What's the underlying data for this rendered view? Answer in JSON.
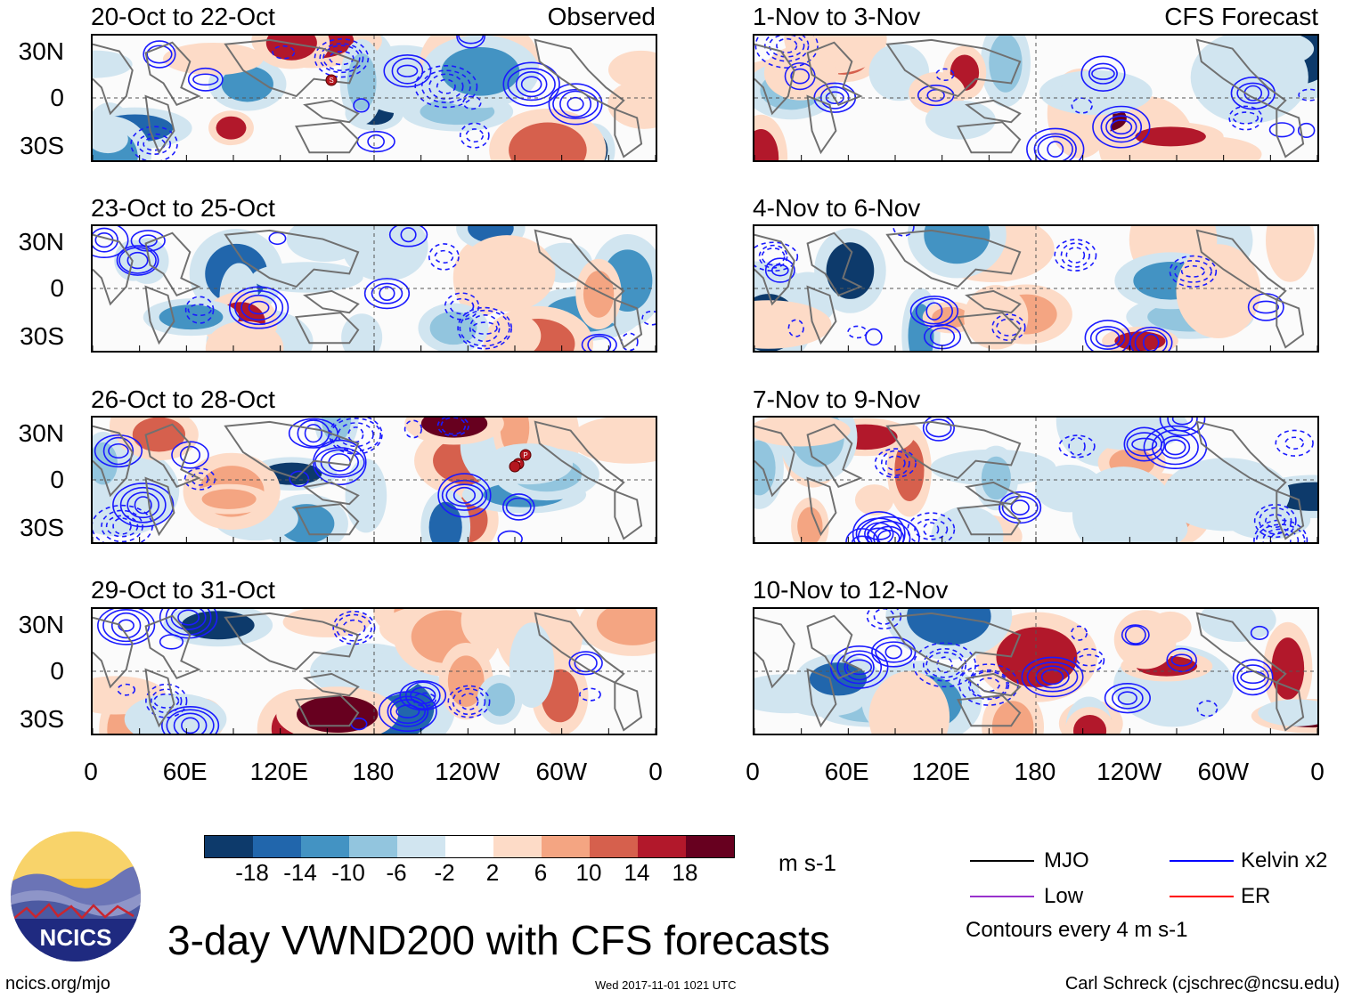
{
  "figure_title": "3-day VWND200 with CFS forecasts",
  "observed_label": "Observed",
  "forecast_label": "CFS Forecast",
  "panels_left": [
    {
      "title": "20-Oct to 22-Oct"
    },
    {
      "title": "23-Oct to 25-Oct"
    },
    {
      "title": "26-Oct to 28-Oct"
    },
    {
      "title": "29-Oct to 31-Oct"
    }
  ],
  "panels_right": [
    {
      "title": "1-Nov to 3-Nov"
    },
    {
      "title": "4-Nov to 6-Nov"
    },
    {
      "title": "7-Nov to 9-Nov"
    },
    {
      "title": "10-Nov to 12-Nov"
    }
  ],
  "lat_labels": [
    "30N",
    "0",
    "30S"
  ],
  "lon_labels": [
    "0",
    "60E",
    "120E",
    "180",
    "120W",
    "60W",
    "0"
  ],
  "colorbar": {
    "colors": [
      "#0d3a6b",
      "#2166ac",
      "#4393c3",
      "#92c5de",
      "#d1e5f0",
      "#ffffff",
      "#fddbc7",
      "#f4a582",
      "#d6604d",
      "#b2182b",
      "#67001f"
    ],
    "labels": [
      "-18",
      "-14",
      "-10",
      "-6",
      "-2",
      "2",
      "6",
      "10",
      "14",
      "18"
    ],
    "units": "m s-1"
  },
  "legend": {
    "items": [
      {
        "label": "MJO",
        "color": "#000000"
      },
      {
        "label": "Kelvin x2",
        "color": "#0000ff"
      },
      {
        "label": "Low",
        "color": "#9932cc"
      },
      {
        "label": "ER",
        "color": "#ff0000"
      }
    ],
    "contours": "Contours every 4 m s-1"
  },
  "logo_text": "NCICS",
  "footer": {
    "url": "ncics.org/mjo",
    "timestamp": "Wed 2017-11-01 1021 UTC",
    "author": "Carl Schreck (cjschrec@ncsu.edu)"
  },
  "storm_markers_count": 4
}
